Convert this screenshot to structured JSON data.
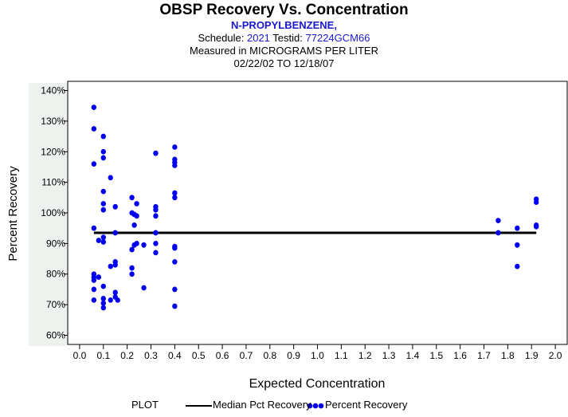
{
  "header": {
    "title": "OBSP Recovery Vs. Concentration",
    "subtitle": "N-PROPYLBENZENE,",
    "schedule_label": "Schedule:",
    "schedule_value": "2021",
    "testid_label": "Testid:",
    "testid_value": "77224GCM66",
    "measured": "Measured in  MICROGRAMS PER LITER",
    "date_range": "02/22/02 TO 12/18/07"
  },
  "legend": {
    "plot_label": "PLOT",
    "median_label": "Median Pct Recovery",
    "points_label": "Percent Recovery"
  },
  "colors": {
    "points": "#0000ee",
    "median": "#000000",
    "band": "#eef2ee"
  },
  "chart_data": {
    "type": "scatter",
    "xlabel": "Expected Concentration",
    "ylabel": "Percent Recovery",
    "xlim": [
      -0.05,
      2.05
    ],
    "ylim": [
      57,
      143
    ],
    "x_ticks": [
      0.0,
      0.1,
      0.2,
      0.3,
      0.4,
      0.5,
      0.6,
      0.7,
      0.8,
      0.9,
      1.0,
      1.1,
      1.2,
      1.3,
      1.4,
      1.5,
      1.6,
      1.7,
      1.8,
      1.9,
      2.0
    ],
    "x_tick_labels": [
      "0.0",
      "0.1",
      "0.2",
      "0.3",
      "0.4",
      "0.5",
      "0.6",
      "0.7",
      "0.8",
      "0.9",
      "1.0",
      "1.1",
      "1.2",
      "1.3",
      "1.4",
      "1.5",
      "1.6",
      "1.7",
      "1.8",
      "1.9",
      "2.0"
    ],
    "y_ticks": [
      60,
      70,
      80,
      90,
      100,
      110,
      120,
      130,
      140
    ],
    "y_tick_labels": [
      "60%",
      "70%",
      "80%",
      "90%",
      "100%",
      "110%",
      "120%",
      "130%",
      "140%"
    ],
    "median": {
      "name": "Median Pct Recovery",
      "value": 93.5,
      "x_range": [
        0.06,
        1.92
      ]
    },
    "series": [
      {
        "name": "Percent Recovery",
        "points": [
          [
            0.06,
            134.5
          ],
          [
            0.06,
            127.5
          ],
          [
            0.06,
            116
          ],
          [
            0.06,
            95
          ],
          [
            0.06,
            80
          ],
          [
            0.06,
            79
          ],
          [
            0.06,
            78
          ],
          [
            0.06,
            75
          ],
          [
            0.06,
            71.5
          ],
          [
            0.08,
            91
          ],
          [
            0.08,
            79
          ],
          [
            0.1,
            125
          ],
          [
            0.1,
            120
          ],
          [
            0.1,
            118
          ],
          [
            0.1,
            107
          ],
          [
            0.1,
            103
          ],
          [
            0.1,
            101
          ],
          [
            0.1,
            92
          ],
          [
            0.1,
            90.5
          ],
          [
            0.1,
            76
          ],
          [
            0.1,
            72
          ],
          [
            0.1,
            70.5
          ],
          [
            0.1,
            69
          ],
          [
            0.13,
            111.5
          ],
          [
            0.13,
            82.5
          ],
          [
            0.13,
            71.5
          ],
          [
            0.15,
            102
          ],
          [
            0.15,
            93.5
          ],
          [
            0.15,
            84
          ],
          [
            0.15,
            83
          ],
          [
            0.15,
            74
          ],
          [
            0.15,
            72.5
          ],
          [
            0.16,
            71.5
          ],
          [
            0.22,
            105
          ],
          [
            0.22,
            100
          ],
          [
            0.22,
            88
          ],
          [
            0.22,
            82
          ],
          [
            0.22,
            80
          ],
          [
            0.23,
            99.5
          ],
          [
            0.23,
            96
          ],
          [
            0.23,
            89.5
          ],
          [
            0.24,
            103
          ],
          [
            0.24,
            99
          ],
          [
            0.24,
            90
          ],
          [
            0.27,
            89.5
          ],
          [
            0.27,
            75.5
          ],
          [
            0.32,
            119.5
          ],
          [
            0.32,
            102
          ],
          [
            0.32,
            101
          ],
          [
            0.32,
            99
          ],
          [
            0.32,
            93.5
          ],
          [
            0.32,
            90
          ],
          [
            0.32,
            87
          ],
          [
            0.4,
            121.5
          ],
          [
            0.4,
            117.5
          ],
          [
            0.4,
            116.5
          ],
          [
            0.4,
            115.5
          ],
          [
            0.4,
            106.5
          ],
          [
            0.4,
            105
          ],
          [
            0.4,
            89
          ],
          [
            0.4,
            88.5
          ],
          [
            0.4,
            84
          ],
          [
            0.4,
            75
          ],
          [
            0.4,
            69.5
          ],
          [
            1.76,
            97.5
          ],
          [
            1.76,
            93.5
          ],
          [
            1.84,
            95
          ],
          [
            1.84,
            89.5
          ],
          [
            1.84,
            82.5
          ],
          [
            1.92,
            104.5
          ],
          [
            1.92,
            103.5
          ],
          [
            1.92,
            96
          ],
          [
            1.92,
            95.5
          ]
        ]
      }
    ]
  }
}
